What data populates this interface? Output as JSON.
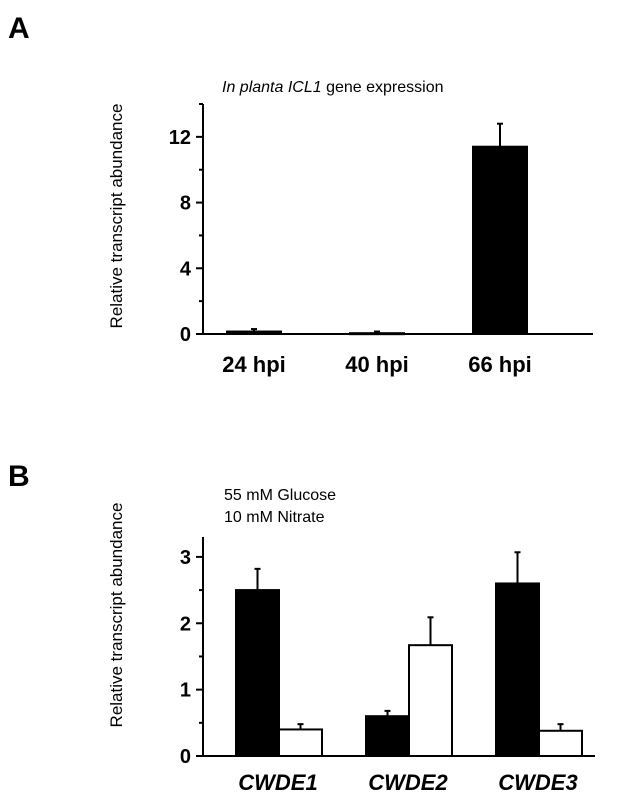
{
  "chart_data": [
    {
      "panel": "A",
      "type": "bar",
      "title_italic": "In planta ICL1",
      "title_rest": " gene expression",
      "ylabel": "Relative transcript abundance",
      "categories": [
        "24 hpi",
        "40 hpi",
        "66 hpi"
      ],
      "values": [
        0.15,
        0.05,
        11.4
      ],
      "errors": [
        0.15,
        0.1,
        1.4
      ],
      "ylim": [
        0,
        14
      ],
      "yticks": [
        "0",
        "4",
        "8",
        "12"
      ],
      "ytick_values": [
        0,
        4,
        8,
        12
      ],
      "bar_color": "#000000"
    },
    {
      "panel": "B",
      "type": "bar",
      "ylabel": "Relative transcript abundance",
      "categories": [
        "CWDE1",
        "CWDE2",
        "CWDE3"
      ],
      "conditions": [
        "55 mM Glucose",
        "10 mM Nitrate"
      ],
      "series": [
        {
          "values": [
            2.5,
            0.6,
            2.6
          ],
          "errors": [
            0.32,
            0.08,
            0.47
          ],
          "color": "#000000"
        },
        {
          "values": [
            0.4,
            1.67,
            0.38
          ],
          "errors": [
            0.08,
            0.42,
            0.1
          ],
          "color": "#ffffff"
        }
      ],
      "ylim": [
        0,
        3.3
      ],
      "yticks": [
        "0",
        "1",
        "2",
        "3"
      ],
      "ytick_values": [
        0,
        1,
        2,
        3
      ]
    }
  ]
}
